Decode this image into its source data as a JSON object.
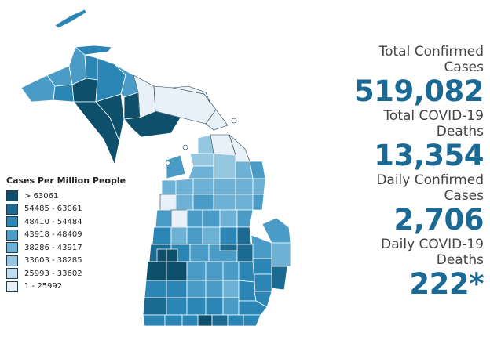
{
  "legend": {
    "title": "Cases Per Million People",
    "items": [
      {
        "label": "> 63061",
        "color": "#0e4f6b"
      },
      {
        "label": "54485 - 63061",
        "color": "#1a6a91"
      },
      {
        "label": "48410 - 54484",
        "color": "#2c86b5"
      },
      {
        "label": "43918 - 48409",
        "color": "#4a9cc6"
      },
      {
        "label": "38286 - 43917",
        "color": "#6db1d4"
      },
      {
        "label": "33603 - 38285",
        "color": "#95c7e1"
      },
      {
        "label": "25993 - 33602",
        "color": "#c0dced"
      },
      {
        "label": "1 - 25992",
        "color": "#e8f1f7"
      }
    ]
  },
  "stats": [
    {
      "label": "Total Confirmed Cases",
      "value": "519,082"
    },
    {
      "label": "Total COVID-19 Deaths",
      "value": "13,354"
    },
    {
      "label": "Daily Confirmed Cases",
      "value": "2,706"
    },
    {
      "label": "Daily COVID-19 Deaths",
      "value": "222*"
    }
  ],
  "map": {
    "border_color": "#ffffff",
    "outline_color": "#1f3b4d"
  }
}
